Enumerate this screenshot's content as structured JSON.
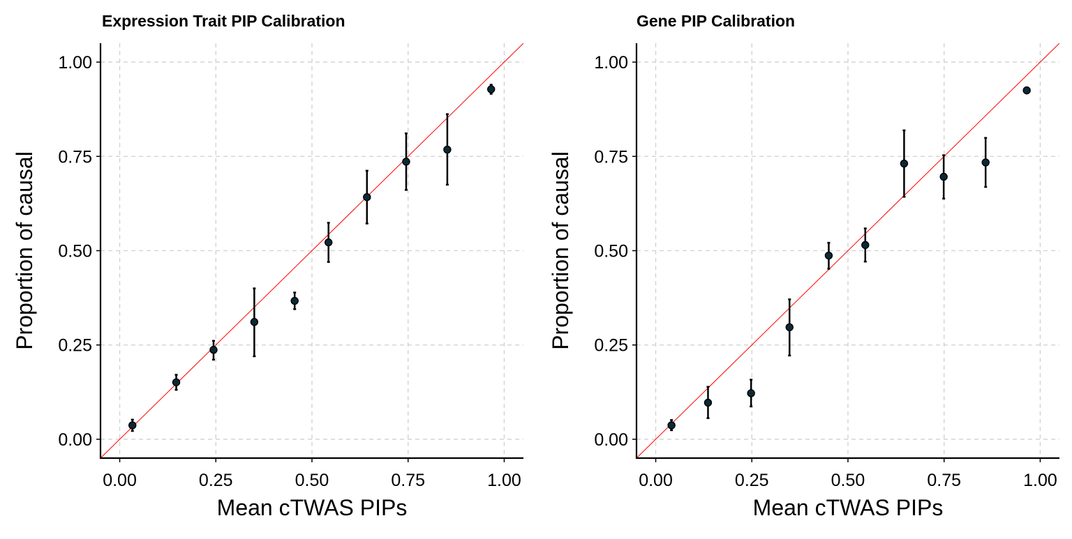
{
  "chart_data": [
    {
      "type": "scatter",
      "title": "Expression Trait PIP Calibration",
      "xlabel": "Mean cTWAS PIPs",
      "ylabel": "Proportion of causal",
      "xlim": [
        -0.05,
        1.05
      ],
      "ylim": [
        -0.05,
        1.05
      ],
      "xticks": [
        0.0,
        0.25,
        0.5,
        0.75,
        1.0
      ],
      "xtick_labels": [
        "0.00",
        "0.25",
        "0.50",
        "0.75",
        "1.00"
      ],
      "yticks": [
        0.0,
        0.25,
        0.5,
        0.75,
        1.0
      ],
      "ytick_labels": [
        "0.00",
        "0.25",
        "0.50",
        "0.75",
        "1.00"
      ],
      "grid": true,
      "reference_line": "y = x",
      "points": [
        {
          "x": 0.033,
          "y": 0.037,
          "ymin": 0.022,
          "ymax": 0.052
        },
        {
          "x": 0.147,
          "y": 0.151,
          "ymin": 0.131,
          "ymax": 0.171
        },
        {
          "x": 0.244,
          "y": 0.237,
          "ymin": 0.211,
          "ymax": 0.261
        },
        {
          "x": 0.35,
          "y": 0.311,
          "ymin": 0.22,
          "ymax": 0.4
        },
        {
          "x": 0.455,
          "y": 0.367,
          "ymin": 0.345,
          "ymax": 0.389
        },
        {
          "x": 0.543,
          "y": 0.522,
          "ymin": 0.47,
          "ymax": 0.574
        },
        {
          "x": 0.643,
          "y": 0.642,
          "ymin": 0.572,
          "ymax": 0.712
        },
        {
          "x": 0.745,
          "y": 0.736,
          "ymin": 0.661,
          "ymax": 0.811
        },
        {
          "x": 0.852,
          "y": 0.768,
          "ymin": 0.675,
          "ymax": 0.862
        },
        {
          "x": 0.966,
          "y": 0.928,
          "ymin": 0.916,
          "ymax": 0.94
        }
      ]
    },
    {
      "type": "scatter",
      "title": "Gene PIP Calibration",
      "xlabel": "Mean cTWAS PIPs",
      "ylabel": "Proportion of causal",
      "xlim": [
        -0.05,
        1.05
      ],
      "ylim": [
        -0.05,
        1.05
      ],
      "xticks": [
        0.0,
        0.25,
        0.5,
        0.75,
        1.0
      ],
      "xtick_labels": [
        "0.00",
        "0.25",
        "0.50",
        "0.75",
        "1.00"
      ],
      "yticks": [
        0.0,
        0.25,
        0.5,
        0.75,
        1.0
      ],
      "ytick_labels": [
        "0.00",
        "0.25",
        "0.50",
        "0.75",
        "1.00"
      ],
      "grid": true,
      "reference_line": "y = x",
      "points": [
        {
          "x": 0.041,
          "y": 0.037,
          "ymin": 0.024,
          "ymax": 0.051
        },
        {
          "x": 0.136,
          "y": 0.097,
          "ymin": 0.056,
          "ymax": 0.139
        },
        {
          "x": 0.248,
          "y": 0.122,
          "ymin": 0.087,
          "ymax": 0.158
        },
        {
          "x": 0.348,
          "y": 0.297,
          "ymin": 0.222,
          "ymax": 0.371
        },
        {
          "x": 0.45,
          "y": 0.487,
          "ymin": 0.452,
          "ymax": 0.521
        },
        {
          "x": 0.545,
          "y": 0.515,
          "ymin": 0.471,
          "ymax": 0.559
        },
        {
          "x": 0.646,
          "y": 0.731,
          "ymin": 0.643,
          "ymax": 0.819
        },
        {
          "x": 0.749,
          "y": 0.696,
          "ymin": 0.638,
          "ymax": 0.753
        },
        {
          "x": 0.858,
          "y": 0.734,
          "ymin": 0.669,
          "ymax": 0.799
        },
        {
          "x": 0.965,
          "y": 0.925,
          "ymin": 0.92,
          "ymax": 0.93
        }
      ]
    }
  ]
}
